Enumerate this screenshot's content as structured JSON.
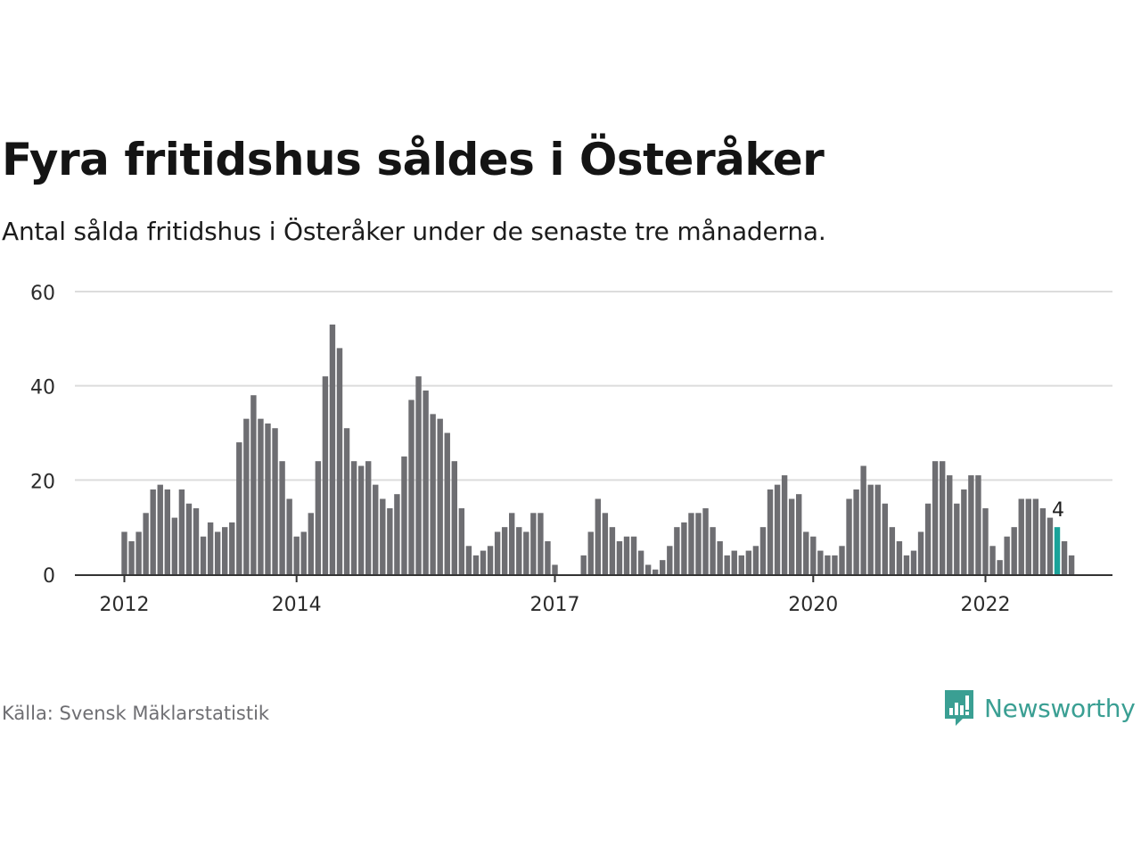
{
  "header": {
    "title": "Fyra fritidshus såldes i Österåker",
    "subtitle": "Antal sålda fritidshus i Österåker under de senaste tre månaderna."
  },
  "footer": {
    "source": "Källa: Svensk Mäklarstatistik",
    "brand": "Newsworthy"
  },
  "colors": {
    "bar": "#6e6e72",
    "highlight": "#1aa39a",
    "grid": "#dcdcdc",
    "axis": "#333333",
    "brand": "#3a9f93"
  },
  "icons": {
    "brand_logo": "bar-chart-speech-bubble-icon"
  },
  "chart_data": {
    "type": "bar",
    "title": "Fyra fritidshus såldes i Österåker",
    "subtitle": "Antal sålda fritidshus i Österåker under de senaste tre månaderna.",
    "xlabel": "",
    "ylabel": "",
    "ylim": [
      0,
      60
    ],
    "yticks": [
      0,
      20,
      40,
      60
    ],
    "xtick_labels": [
      {
        "label": "2012",
        "index": 0
      },
      {
        "label": "2014",
        "index": 24
      },
      {
        "label": "2017",
        "index": 60
      },
      {
        "label": "2020",
        "index": 96
      },
      {
        "label": "2022",
        "index": 120
      }
    ],
    "grid": true,
    "legend": "none",
    "series": [
      {
        "values": [
          9,
          7,
          9,
          13,
          18,
          19,
          18,
          12,
          18,
          15,
          14,
          8,
          11,
          9,
          10,
          11,
          28,
          33,
          38,
          33,
          32,
          31,
          24,
          16,
          8,
          9,
          13,
          24,
          42,
          53,
          48,
          31,
          24,
          23,
          24,
          19,
          16,
          14,
          17,
          25,
          37,
          42,
          39,
          34,
          33,
          30,
          24,
          14,
          6,
          4,
          5,
          6,
          9,
          10,
          13,
          10,
          9,
          13,
          13,
          7,
          2,
          0,
          0,
          0,
          4,
          9,
          16,
          13,
          10,
          7,
          8,
          8,
          5,
          2,
          1,
          3,
          6,
          10,
          11,
          13,
          13,
          14,
          10,
          7,
          4,
          5,
          4,
          5,
          6,
          10,
          18,
          19,
          21,
          16,
          17,
          9,
          8,
          5,
          4,
          4,
          6,
          16,
          18,
          23,
          19,
          19,
          15,
          10,
          7,
          4,
          5,
          9,
          15,
          24,
          24,
          21,
          15,
          18,
          21,
          21,
          14,
          6,
          3,
          8,
          10,
          16,
          16,
          16,
          14,
          12,
          10,
          7,
          4
        ]
      }
    ],
    "highlight_index": 130,
    "annotations": [
      {
        "text": "4",
        "index": 130
      }
    ]
  }
}
